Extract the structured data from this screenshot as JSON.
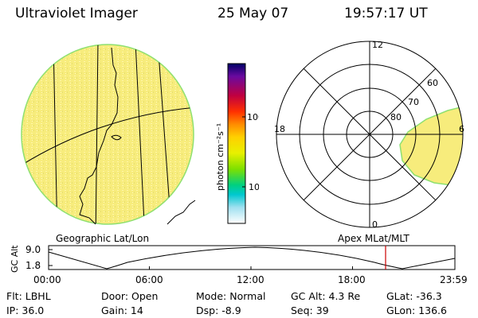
{
  "header": {
    "title": "Ultraviolet Imager",
    "date": "25 May 07",
    "time": "19:57:17 UT"
  },
  "colorbar": {
    "unit_label": "photon cm⁻²s⁻¹",
    "ticks": [
      "100",
      "10"
    ],
    "colors": [
      "#000066",
      "#6a0aa0",
      "#c00040",
      "#ff3000",
      "#ff8c00",
      "#ffd000",
      "#e8f000",
      "#7ee000",
      "#00d080",
      "#00c8d0",
      "#a0e0f0",
      "#ffffff"
    ]
  },
  "polar": {
    "hour_labels": {
      "top": "12",
      "left": "18",
      "right": "6",
      "bottom": "0"
    },
    "lat_labels": [
      "60",
      "70",
      "80"
    ]
  },
  "panel_labels": {
    "left": "Geographic Lat/Lon",
    "right": "Apex MLat/MLT"
  },
  "timeline": {
    "y_label": "GC Alt",
    "y_ticks": [
      "9.0",
      "1.8"
    ],
    "x_ticks": [
      "00:00",
      "06:00",
      "12:00",
      "18:00",
      "23:59"
    ],
    "marker_color": "#cc0000"
  },
  "info": {
    "flt": "Flt: LBHL",
    "ip": "IP: 36.0",
    "door": "Door: Open",
    "gain": "Gain: 14",
    "mode": "Mode: Normal",
    "dsp": "Dsp:    -8.9",
    "gc_alt": "GC Alt: 4.3 Re",
    "seq": "Seq: 39",
    "glat": "GLat:  -36.3",
    "glon": "GLon: 136.6"
  }
}
